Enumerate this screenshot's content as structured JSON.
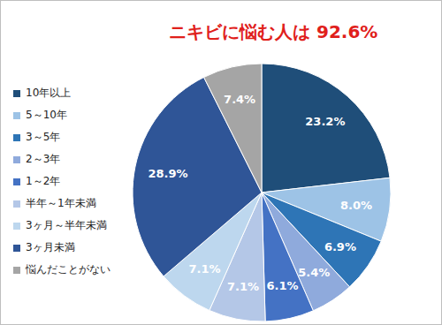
{
  "chart_data": {
    "type": "pie",
    "title": "ニキビに悩む人は 92.6%",
    "categories": [
      "10年以上",
      "5～10年",
      "3～5年",
      "2～3年",
      "1～2年",
      "半年～1年未満",
      "3ヶ月～半年未満",
      "3ヶ月未満",
      "悩んだことがない"
    ],
    "values": [
      23.2,
      8.0,
      6.9,
      5.4,
      6.1,
      7.1,
      7.1,
      28.9,
      7.4
    ],
    "value_labels": [
      "23.2%",
      "8.0%",
      "6.9%",
      "5.4%",
      "6.1%",
      "7.1%",
      "7.1%",
      "28.9%",
      "7.4%"
    ],
    "colors": [
      "#1f4e79",
      "#9dc3e6",
      "#2e75b6",
      "#8faadc",
      "#4472c4",
      "#b4c7e7",
      "#bdd7ee",
      "#2f5597",
      "#a5a5a5"
    ],
    "data_labels": true,
    "legend": "left"
  }
}
